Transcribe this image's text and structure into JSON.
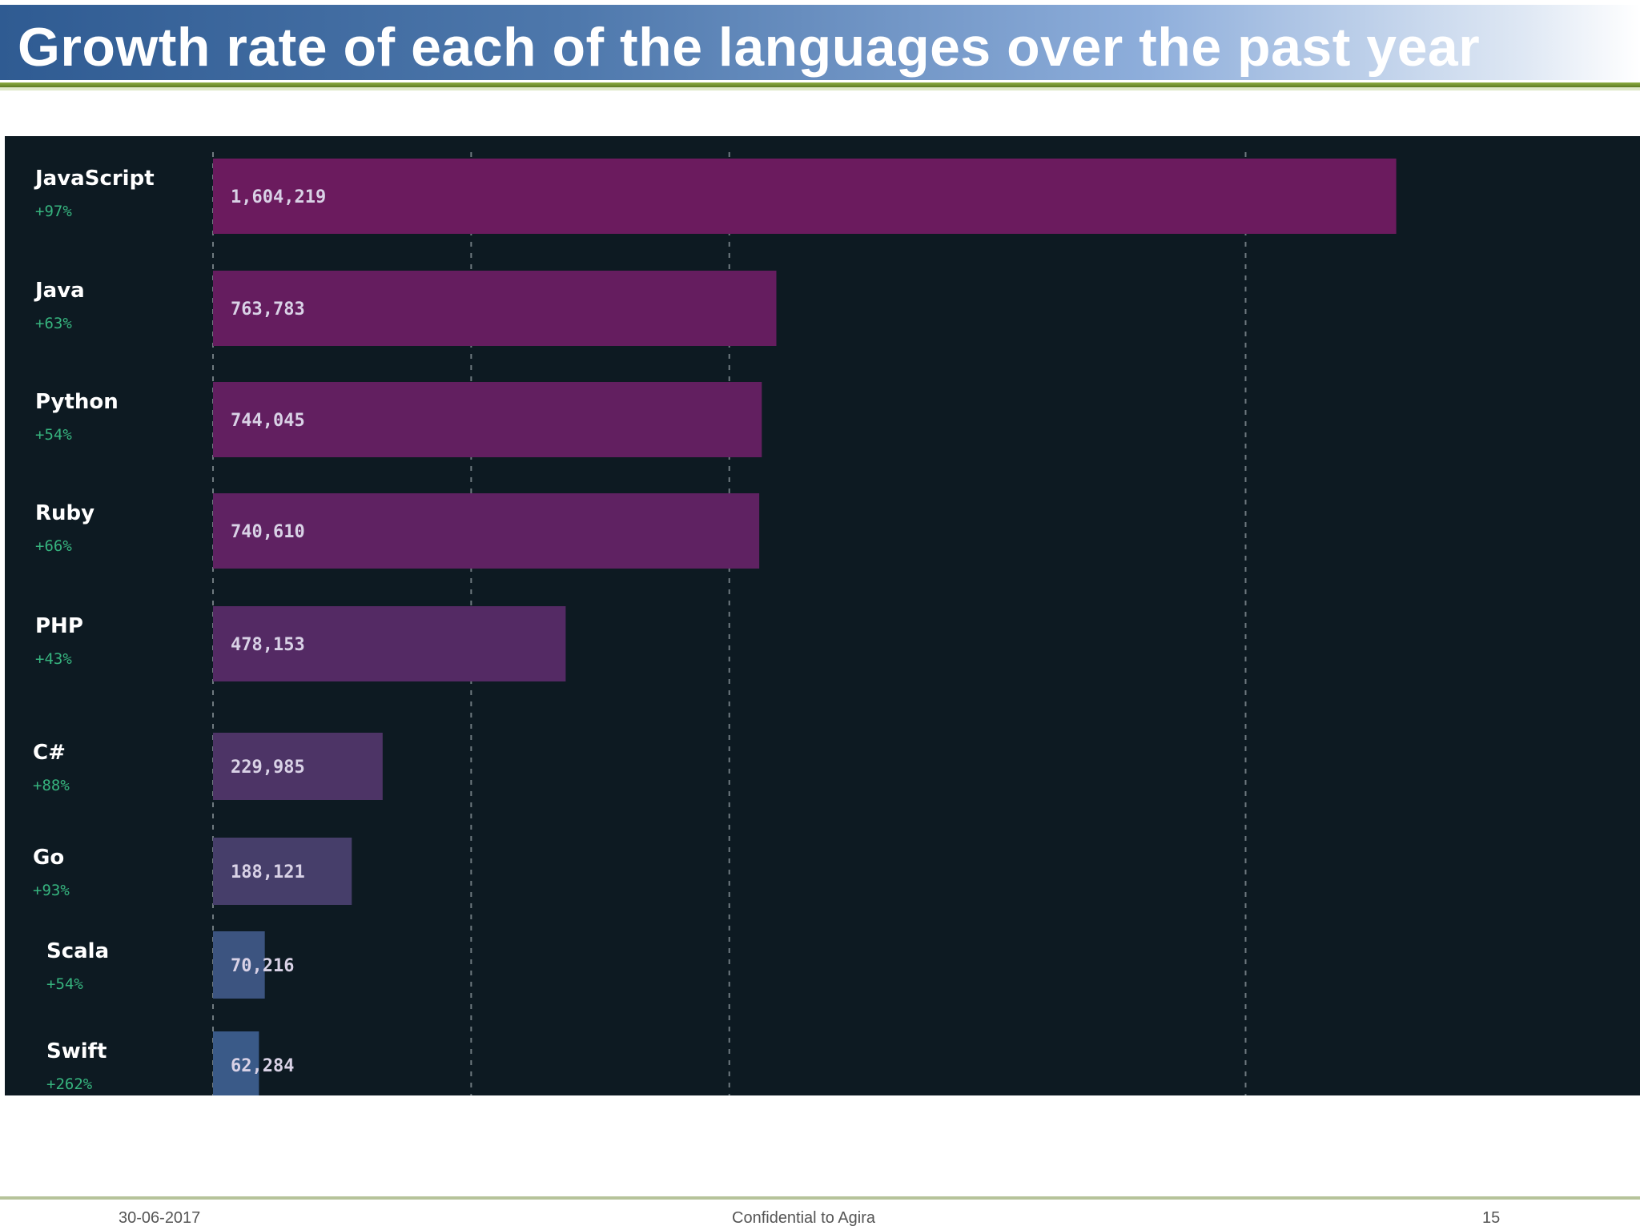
{
  "slide": {
    "title": "Growth rate of each of the languages over the past year",
    "footer": {
      "date": "30-06-2017",
      "center": "Confidential to Agira",
      "page": "15"
    }
  },
  "colors": {
    "title_gradient_start": "#2f5b92",
    "panel_background": "#0d1a22",
    "growth_text": "#36b37e",
    "label_text": "#ffffff",
    "bar_text": "#d9d2e6"
  },
  "chart_data": {
    "type": "bar",
    "orientation": "horizontal",
    "title": "",
    "xlabel": "",
    "ylabel": "",
    "xlim": [
      0,
      1900000
    ],
    "grid": "dashed vertical lines",
    "categories": [
      "JavaScript",
      "Java",
      "Python",
      "Ruby",
      "PHP",
      "C#",
      "Go",
      "Scala",
      "Swift"
    ],
    "values": [
      1604219,
      763783,
      744045,
      740610,
      478153,
      229985,
      188121,
      70216,
      62284
    ],
    "value_labels": [
      "1,604,219",
      "763,783",
      "744,045",
      "740,610",
      "478,153",
      "229,985",
      "188,121",
      "70,216",
      "62,284"
    ],
    "growth": [
      "+97%",
      "+63%",
      "+54%",
      "+66%",
      "+43%",
      "+88%",
      "+93%",
      "+54%",
      "+262%"
    ],
    "bar_colors": [
      "#6b1b5e",
      "#651d5f",
      "#621f60",
      "#5f2262",
      "#542a64",
      "#4d3466",
      "#463e6a",
      "#3c5480",
      "#3a5a88"
    ]
  }
}
